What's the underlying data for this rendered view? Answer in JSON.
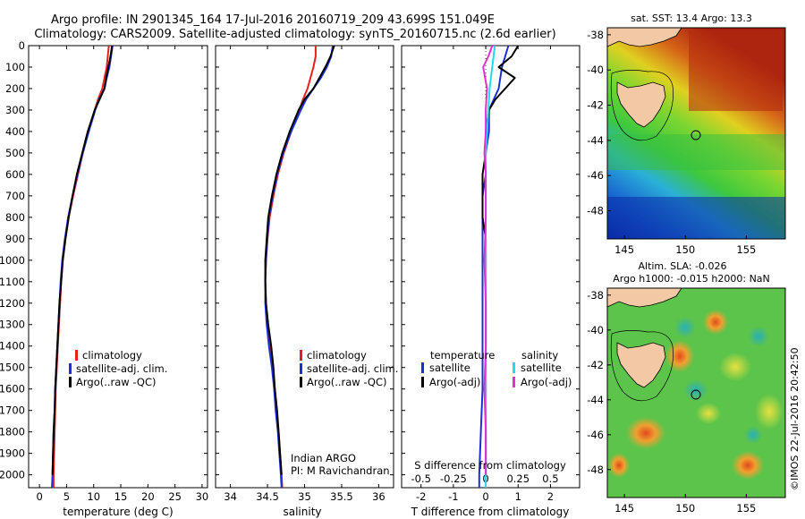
{
  "header": {
    "line1": "Argo profile: IN 2901345_164 17-Jul-2016 20160719_209 43.699S 151.049E",
    "line2": "Climatology: CARS2009. Satellite-adjusted climatology: synTS_20160715.nc (2.6d earlier)"
  },
  "colors": {
    "climatology": "#e8201c",
    "satellite_clim": "#1a2fd6",
    "argo": "#000000",
    "salinity_sat": "#22d8f0",
    "salinity_argo": "#e030d0"
  },
  "depth_ticks": [
    "0",
    "100",
    "200",
    "300",
    "400",
    "500",
    "600",
    "700",
    "800",
    "900",
    "1000",
    "1100",
    "1200",
    "1300",
    "1400",
    "1500",
    "1600",
    "1700",
    "1800",
    "1900",
    "2000"
  ],
  "legend_profile": [
    "climatology",
    "satellite-adj. clim.",
    "Argo(..raw -QC)"
  ],
  "legend_diff": {
    "temperature_head": "temperature",
    "salinity_head": "salinity",
    "items": [
      "satellite",
      "Argo(-adj)"
    ]
  },
  "pi_note": {
    "line1": "Indian ARGO",
    "line2": "PI: M Ravichandran"
  },
  "diff_title": "S difference from climatology",
  "map_sst": {
    "title": "sat. SST: 13.4 Argo: 13.3"
  },
  "map_sla": {
    "title1": "Altim. SLA: -0.026",
    "title2": "Argo h1000: -0.015 h2000: NaN"
  },
  "map_lat_ticks": [
    "-38",
    "-40",
    "-42",
    "-44",
    "-46",
    "-48"
  ],
  "map_lon_ticks": [
    "145",
    "150",
    "155"
  ],
  "credit": "©IMOS 22-Jul-2016 20:42:50",
  "chart_data": [
    {
      "type": "line",
      "xlabel": "temperature (deg C)",
      "ylabel": "",
      "xlim": [
        -2,
        31
      ],
      "ylim": [
        2060,
        0
      ],
      "x_ticks": [
        "0",
        "5",
        "10",
        "15",
        "20",
        "25",
        "30"
      ],
      "series": [
        {
          "name": "climatology",
          "depth": [
            0,
            50,
            100,
            150,
            200,
            250,
            300,
            400,
            500,
            600,
            700,
            800,
            900,
            1000,
            1100,
            1200,
            1300,
            1400,
            1500,
            1600,
            1700,
            1800,
            1900,
            2000,
            2060
          ],
          "values": [
            12.8,
            12.6,
            12.4,
            12.0,
            11.6,
            10.8,
            10.2,
            9.0,
            8.0,
            7.1,
            6.2,
            5.4,
            4.8,
            4.3,
            4.0,
            3.8,
            3.6,
            3.4,
            3.2,
            3.0,
            2.9,
            2.8,
            2.7,
            2.6,
            2.6
          ]
        },
        {
          "name": "satellite-adj. clim.",
          "depth": [
            0,
            50,
            100,
            150,
            200,
            250,
            300,
            400,
            500,
            600,
            700,
            800,
            900,
            1000,
            1100,
            1200,
            1300,
            1400,
            1500,
            1600,
            1700,
            1800,
            1900,
            2000,
            2060
          ],
          "values": [
            13.5,
            13.2,
            12.9,
            12.4,
            12.0,
            11.0,
            10.3,
            9.1,
            8.0,
            7.0,
            6.1,
            5.3,
            4.7,
            4.2,
            3.9,
            3.7,
            3.5,
            3.3,
            3.1,
            2.9,
            2.8,
            2.6,
            2.5,
            2.4,
            2.3
          ]
        },
        {
          "name": "Argo(..raw -QC)",
          "depth": [
            0,
            50,
            100,
            150,
            200,
            250,
            300,
            400,
            500,
            600,
            700,
            800,
            900,
            1000,
            1100,
            1200,
            1300,
            1400,
            1500,
            1600,
            1700,
            1800,
            1900,
            2000
          ],
          "values": [
            13.4,
            13.1,
            12.7,
            12.3,
            12.0,
            11.1,
            10.2,
            8.9,
            7.9,
            6.9,
            6.1,
            5.4,
            4.8,
            4.3,
            4.0,
            3.7,
            3.5,
            3.3,
            3.1,
            2.9,
            2.8,
            2.6,
            2.5,
            2.4
          ]
        }
      ]
    },
    {
      "type": "line",
      "xlabel": "salinity",
      "ylabel": "",
      "xlim": [
        33.8,
        36.2
      ],
      "ylim": [
        2060,
        0
      ],
      "x_ticks": [
        "34",
        "34.5",
        "35",
        "35.5",
        "36"
      ],
      "series": [
        {
          "name": "climatology",
          "depth": [
            0,
            50,
            100,
            150,
            200,
            250,
            300,
            400,
            500,
            600,
            700,
            800,
            900,
            1000,
            1100,
            1200,
            1300,
            1400,
            1500,
            1600,
            1700,
            1800,
            1900,
            2000,
            2060
          ],
          "values": [
            35.15,
            35.15,
            35.12,
            35.08,
            35.04,
            34.98,
            34.93,
            34.82,
            34.72,
            34.64,
            34.58,
            34.53,
            34.5,
            34.48,
            34.47,
            34.48,
            34.5,
            34.54,
            34.57,
            34.6,
            34.62,
            34.65,
            34.67,
            34.69,
            34.7
          ]
        },
        {
          "name": "satellite-adj. clim.",
          "depth": [
            0,
            50,
            100,
            150,
            200,
            250,
            300,
            400,
            500,
            600,
            700,
            800,
            900,
            1000,
            1100,
            1200,
            1300,
            1400,
            1500,
            1600,
            1700,
            1800,
            1900,
            2000,
            2060
          ],
          "values": [
            35.38,
            35.36,
            35.3,
            35.22,
            35.12,
            35.02,
            34.95,
            34.82,
            34.71,
            34.63,
            34.57,
            34.52,
            34.5,
            34.48,
            34.47,
            34.47,
            34.49,
            34.52,
            34.56,
            34.59,
            34.61,
            34.64,
            34.66,
            34.68,
            34.69
          ]
        },
        {
          "name": "Argo(..raw -QC)",
          "depth": [
            0,
            50,
            100,
            150,
            200,
            250,
            300,
            400,
            500,
            600,
            700,
            800,
            900,
            1000,
            1100,
            1200,
            1300,
            1400,
            1500,
            1600,
            1700,
            1800,
            1900,
            2000
          ],
          "values": [
            35.4,
            35.35,
            35.28,
            35.2,
            35.12,
            35.0,
            34.92,
            34.8,
            34.7,
            34.62,
            34.56,
            34.51,
            34.49,
            34.47,
            34.47,
            34.48,
            34.51,
            34.55,
            34.58,
            34.6,
            34.63,
            34.65,
            34.67,
            34.69
          ]
        }
      ]
    },
    {
      "type": "line",
      "xlabel": "T difference from climatology",
      "x2label": "S difference from climatology",
      "ylabel": "",
      "xlim": [
        -2.6,
        2.9
      ],
      "x2lim": [
        -0.65,
        0.725
      ],
      "ylim": [
        2060,
        0
      ],
      "x_ticks": [
        "-2",
        "-1",
        "0",
        "1",
        "2"
      ],
      "x2_ticks": [
        "-0.5",
        "-0.25",
        "0",
        "0.25",
        "0.5"
      ],
      "series": [
        {
          "name": "temperature satellite",
          "axis": "T",
          "depth": [
            0,
            50,
            100,
            200,
            300,
            400,
            500,
            600,
            700,
            800,
            900,
            1000,
            1200,
            1400,
            1600,
            1800,
            2000,
            2060
          ],
          "values": [
            0.7,
            0.6,
            0.5,
            0.4,
            0.1,
            0.1,
            0.0,
            0.0,
            -0.1,
            -0.1,
            -0.1,
            -0.1,
            -0.1,
            -0.1,
            -0.1,
            -0.15,
            -0.2,
            -0.2
          ]
        },
        {
          "name": "temperature Argo(-adj)",
          "axis": "T",
          "depth": [
            0,
            50,
            100,
            150,
            200,
            250,
            300,
            400,
            500,
            600,
            700,
            800,
            900,
            1000,
            1200,
            1400,
            1600,
            1800,
            2000
          ],
          "values": [
            1.0,
            0.8,
            0.4,
            0.9,
            0.6,
            0.3,
            0.1,
            0.0,
            0.0,
            -0.1,
            -0.1,
            -0.1,
            0.0,
            0.0,
            0.0,
            0.0,
            0.0,
            0.0,
            0.0
          ]
        },
        {
          "name": "salinity satellite",
          "axis": "S",
          "depth": [
            0,
            50,
            100,
            200,
            300,
            400,
            500,
            600,
            800,
            1000,
            1200,
            1400,
            1600,
            1800,
            2000,
            2060
          ],
          "values": [
            0.07,
            0.06,
            0.05,
            0.03,
            0.02,
            0.01,
            0.0,
            0.0,
            0.0,
            0.0,
            0.0,
            0.0,
            0.0,
            0.0,
            0.0,
            0.0
          ]
        },
        {
          "name": "salinity Argo(-adj)",
          "axis": "S",
          "depth": [
            0,
            50,
            100,
            200,
            300,
            400,
            500,
            600,
            800,
            1000,
            1200,
            1400,
            1600,
            1800,
            2000
          ],
          "values": [
            0.05,
            0.02,
            -0.02,
            0.01,
            0.0,
            0.0,
            -0.01,
            0.0,
            0.0,
            -0.01,
            0.0,
            0.0,
            -0.01,
            0.0,
            0.0
          ]
        }
      ]
    }
  ]
}
